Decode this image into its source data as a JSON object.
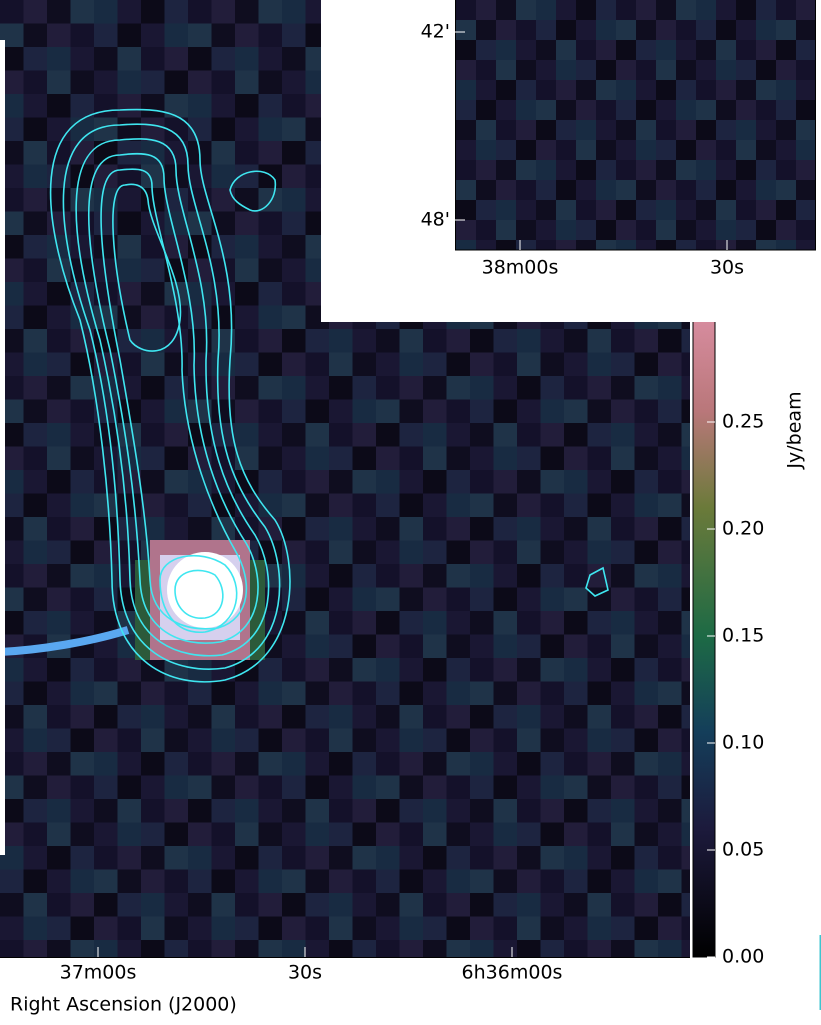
{
  "chart_data": {
    "type": "image",
    "xlabel": "Right Ascension (J2000)",
    "xticks": [
      "37m00s",
      "30s",
      "6h36m00s"
    ],
    "colorbar": {
      "label": "Jy/beam",
      "lim": [
        0,
        0.3
      ],
      "ticks": [
        {
          "value": 0,
          "label": "0.00"
        },
        0.05,
        {
          "value": 0.1,
          "label": "0.10"
        },
        0.15,
        {
          "value": 0.2,
          "label": "0.20"
        },
        0.25
      ]
    },
    "inset": {
      "yticks": [
        "42'",
        "48'"
      ],
      "xticks": [
        "38m00s",
        "30s"
      ]
    }
  }
}
